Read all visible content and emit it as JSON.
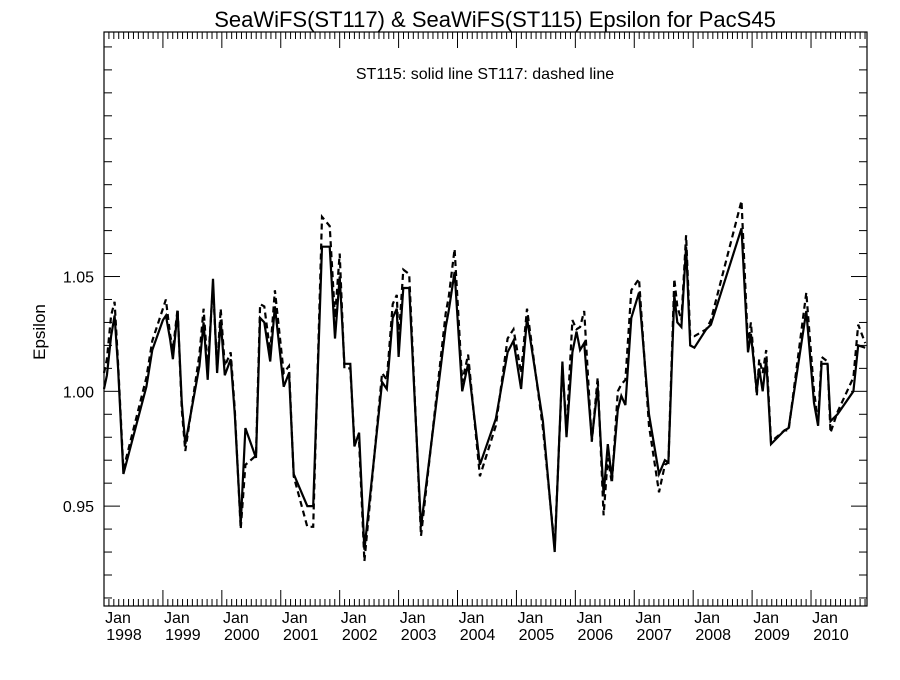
{
  "chart_data": {
    "type": "line",
    "title": "SeaWiFS(ST117) & SeaWiFS(ST115)  Epsilon for PacS45",
    "annotation": "ST115: solid line   ST117: dashed line",
    "xlabel": "",
    "ylabel": "Epsilon",
    "xlim": [
      1998.0,
      2010.95
    ],
    "ylim": [
      0.9065,
      1.1565
    ],
    "y_ticks": [
      {
        "value": 0.95,
        "label": "0.95"
      },
      {
        "value": 1.0,
        "label": "1.00"
      },
      {
        "value": 1.05,
        "label": "1.05"
      }
    ],
    "x_ticks": [
      {
        "value": 1998,
        "month": "Jan",
        "year": "1998"
      },
      {
        "value": 1999,
        "month": "Jan",
        "year": "1999"
      },
      {
        "value": 2000,
        "month": "Jan",
        "year": "2000"
      },
      {
        "value": 2001,
        "month": "Jan",
        "year": "2001"
      },
      {
        "value": 2002,
        "month": "Jan",
        "year": "2002"
      },
      {
        "value": 2003,
        "month": "Jan",
        "year": "2003"
      },
      {
        "value": 2004,
        "month": "Jan",
        "year": "2004"
      },
      {
        "value": 2005,
        "month": "Jan",
        "year": "2005"
      },
      {
        "value": 2006,
        "month": "Jan",
        "year": "2006"
      },
      {
        "value": 2007,
        "month": "Jan",
        "year": "2007"
      },
      {
        "value": 2008,
        "month": "Jan",
        "year": "2008"
      },
      {
        "value": 2009,
        "month": "Jan",
        "year": "2009"
      },
      {
        "value": 2010,
        "month": "Jan",
        "year": "2010"
      }
    ],
    "grid": false,
    "series": [
      {
        "name": "ST115",
        "style": "solid",
        "color": "#000000",
        "points": [
          [
            1998.0,
            1.001
          ],
          [
            1998.05,
            1.007
          ],
          [
            1998.12,
            1.024
          ],
          [
            1998.18,
            1.033
          ],
          [
            1998.24,
            1.01
          ],
          [
            1998.33,
            0.964
          ],
          [
            1998.72,
            1.002
          ],
          [
            1998.82,
            1.018
          ],
          [
            1999.0,
            1.031
          ],
          [
            1999.05,
            1.033
          ],
          [
            1999.12,
            1.023
          ],
          [
            1999.17,
            1.014
          ],
          [
            1999.25,
            1.035
          ],
          [
            1999.32,
            0.995
          ],
          [
            1999.38,
            0.977
          ],
          [
            1999.62,
            1.011
          ],
          [
            1999.69,
            1.03
          ],
          [
            1999.76,
            1.005
          ],
          [
            1999.85,
            1.049
          ],
          [
            1999.92,
            1.008
          ],
          [
            1999.98,
            1.031
          ],
          [
            2000.05,
            1.007
          ],
          [
            2000.15,
            1.014
          ],
          [
            2000.22,
            0.99
          ],
          [
            2000.32,
            0.942
          ],
          [
            2000.4,
            0.984
          ],
          [
            2000.58,
            0.971
          ],
          [
            2000.65,
            1.032
          ],
          [
            2000.72,
            1.03
          ],
          [
            2000.82,
            1.013
          ],
          [
            2000.9,
            1.037
          ],
          [
            2001.05,
            1.002
          ],
          [
            2001.14,
            1.008
          ],
          [
            2001.22,
            0.964
          ],
          [
            2001.45,
            0.95
          ],
          [
            2001.55,
            0.95
          ],
          [
            2001.7,
            1.063
          ],
          [
            2001.83,
            1.063
          ],
          [
            2001.92,
            1.023
          ],
          [
            2002.0,
            1.05
          ],
          [
            2002.08,
            1.012
          ],
          [
            2002.18,
            1.012
          ],
          [
            2002.25,
            0.976
          ],
          [
            2002.33,
            0.982
          ],
          [
            2002.42,
            0.931
          ],
          [
            2002.72,
            1.004
          ],
          [
            2002.8,
            1.001
          ],
          [
            2002.9,
            1.032
          ],
          [
            2002.97,
            1.036
          ],
          [
            2003.0,
            1.015
          ],
          [
            2003.08,
            1.045
          ],
          [
            2003.18,
            1.045
          ],
          [
            2003.38,
            0.941
          ],
          [
            2003.8,
            1.028
          ],
          [
            2003.85,
            1.035
          ],
          [
            2003.95,
            1.052
          ],
          [
            2004.08,
            1.0
          ],
          [
            2004.18,
            1.012
          ],
          [
            2004.38,
            0.968
          ],
          [
            2004.65,
            0.988
          ],
          [
            2004.85,
            1.017
          ],
          [
            2004.95,
            1.022
          ],
          [
            2005.08,
            1.001
          ],
          [
            2005.18,
            1.032
          ],
          [
            2005.45,
            0.987
          ],
          [
            2005.65,
            0.93
          ],
          [
            2005.78,
            1.013
          ],
          [
            2005.85,
            0.98
          ],
          [
            2005.95,
            1.017
          ],
          [
            2006.02,
            1.026
          ],
          [
            2006.08,
            1.018
          ],
          [
            2006.15,
            1.021
          ],
          [
            2006.28,
            0.979
          ],
          [
            2006.38,
            1.002
          ],
          [
            2006.48,
            0.955
          ],
          [
            2006.55,
            0.977
          ],
          [
            2006.62,
            0.962
          ],
          [
            2006.72,
            0.992
          ],
          [
            2006.78,
            0.998
          ],
          [
            2006.85,
            0.994
          ],
          [
            2006.95,
            1.032
          ],
          [
            2007.08,
            1.043
          ],
          [
            2007.25,
            0.99
          ],
          [
            2007.42,
            0.964
          ],
          [
            2007.52,
            0.97
          ],
          [
            2007.58,
            0.969
          ],
          [
            2007.68,
            1.042
          ],
          [
            2007.73,
            1.03
          ],
          [
            2007.8,
            1.028
          ],
          [
            2007.88,
            1.063
          ],
          [
            2007.95,
            1.02
          ],
          [
            2008.02,
            1.019
          ],
          [
            2008.22,
            1.027
          ],
          [
            2008.3,
            1.029
          ],
          [
            2008.82,
            1.071
          ],
          [
            2008.93,
            1.017
          ],
          [
            2008.98,
            1.025
          ],
          [
            2009.08,
            1.0
          ],
          [
            2009.12,
            1.01
          ],
          [
            2009.18,
            1.0
          ],
          [
            2009.24,
            1.014
          ],
          [
            2009.32,
            0.977
          ],
          [
            2009.55,
            0.983
          ],
          [
            2009.62,
            0.984
          ],
          [
            2009.92,
            1.035
          ],
          [
            2010.05,
            0.995
          ],
          [
            2010.12,
            0.985
          ],
          [
            2010.18,
            1.012
          ],
          [
            2010.28,
            1.012
          ],
          [
            2010.33,
            0.987
          ],
          [
            2010.45,
            0.99
          ],
          [
            2010.72,
            1.0
          ],
          [
            2010.8,
            1.02
          ],
          [
            2010.92,
            1.019
          ]
        ]
      },
      {
        "name": "ST117",
        "style": "dashed",
        "color": "#000000",
        "points": [
          [
            1998.0,
            1.008
          ],
          [
            1998.05,
            1.014
          ],
          [
            1998.12,
            1.033
          ],
          [
            1998.18,
            1.039
          ],
          [
            1998.24,
            1.012
          ],
          [
            1998.33,
            0.966
          ],
          [
            1998.72,
            1.006
          ],
          [
            1998.82,
            1.022
          ],
          [
            1999.0,
            1.036
          ],
          [
            1999.05,
            1.04
          ],
          [
            1999.12,
            1.025
          ],
          [
            1999.17,
            1.018
          ],
          [
            1999.25,
            1.036
          ],
          [
            1999.32,
            0.992
          ],
          [
            1999.38,
            0.974
          ],
          [
            1999.62,
            1.016
          ],
          [
            1999.69,
            1.036
          ],
          [
            1999.76,
            1.01
          ],
          [
            1999.85,
            1.046
          ],
          [
            1999.92,
            1.01
          ],
          [
            1999.98,
            1.036
          ],
          [
            2000.05,
            1.011
          ],
          [
            2000.15,
            1.017
          ],
          [
            2000.22,
            0.992
          ],
          [
            2000.32,
            0.94
          ],
          [
            2000.4,
            0.968
          ],
          [
            2000.58,
            0.972
          ],
          [
            2000.65,
            1.038
          ],
          [
            2000.72,
            1.037
          ],
          [
            2000.82,
            1.017
          ],
          [
            2000.9,
            1.044
          ],
          [
            2001.05,
            1.008
          ],
          [
            2001.14,
            1.011
          ],
          [
            2001.22,
            0.963
          ],
          [
            2001.45,
            0.941
          ],
          [
            2001.55,
            0.941
          ],
          [
            2001.7,
            1.076
          ],
          [
            2001.83,
            1.072
          ],
          [
            2001.92,
            1.032
          ],
          [
            2002.0,
            1.06
          ],
          [
            2002.08,
            1.01
          ],
          [
            2002.18,
            1.01
          ],
          [
            2002.25,
            0.978
          ],
          [
            2002.33,
            0.978
          ],
          [
            2002.42,
            0.926
          ],
          [
            2002.72,
            1.008
          ],
          [
            2002.8,
            1.005
          ],
          [
            2002.9,
            1.038
          ],
          [
            2002.97,
            1.042
          ],
          [
            2003.0,
            1.022
          ],
          [
            2003.08,
            1.053
          ],
          [
            2003.18,
            1.051
          ],
          [
            2003.38,
            0.937
          ],
          [
            2003.8,
            1.034
          ],
          [
            2003.85,
            1.041
          ],
          [
            2003.95,
            1.062
          ],
          [
            2004.08,
            1.004
          ],
          [
            2004.18,
            1.016
          ],
          [
            2004.38,
            0.963
          ],
          [
            2004.65,
            0.985
          ],
          [
            2004.85,
            1.023
          ],
          [
            2004.95,
            1.027
          ],
          [
            2005.08,
            1.008
          ],
          [
            2005.18,
            1.036
          ],
          [
            2005.45,
            0.984
          ],
          [
            2005.65,
            0.932
          ],
          [
            2005.78,
            1.011
          ],
          [
            2005.85,
            0.983
          ],
          [
            2005.95,
            1.031
          ],
          [
            2006.02,
            1.027
          ],
          [
            2006.08,
            1.028
          ],
          [
            2006.15,
            1.035
          ],
          [
            2006.28,
            0.978
          ],
          [
            2006.38,
            1.006
          ],
          [
            2006.48,
            0.946
          ],
          [
            2006.55,
            0.971
          ],
          [
            2006.62,
            0.96
          ],
          [
            2006.72,
            1.0
          ],
          [
            2006.78,
            1.003
          ],
          [
            2006.85,
            1.005
          ],
          [
            2006.95,
            1.044
          ],
          [
            2007.08,
            1.049
          ],
          [
            2007.25,
            0.985
          ],
          [
            2007.42,
            0.956
          ],
          [
            2007.52,
            0.968
          ],
          [
            2007.58,
            0.969
          ],
          [
            2007.68,
            1.049
          ],
          [
            2007.73,
            1.037
          ],
          [
            2007.8,
            1.031
          ],
          [
            2007.88,
            1.068
          ],
          [
            2007.95,
            1.024
          ],
          [
            2008.02,
            1.024
          ],
          [
            2008.22,
            1.027
          ],
          [
            2008.3,
            1.031
          ],
          [
            2008.82,
            1.083
          ],
          [
            2008.93,
            1.02
          ],
          [
            2008.98,
            1.03
          ],
          [
            2009.08,
            0.998
          ],
          [
            2009.12,
            1.014
          ],
          [
            2009.18,
            1.008
          ],
          [
            2009.24,
            1.018
          ],
          [
            2009.32,
            0.978
          ],
          [
            2009.55,
            0.983
          ],
          [
            2009.62,
            0.983
          ],
          [
            2009.92,
            1.043
          ],
          [
            2010.05,
            1.0
          ],
          [
            2010.12,
            0.987
          ],
          [
            2010.18,
            1.015
          ],
          [
            2010.28,
            1.013
          ],
          [
            2010.33,
            0.982
          ],
          [
            2010.45,
            0.991
          ],
          [
            2010.72,
            1.006
          ],
          [
            2010.8,
            1.029
          ],
          [
            2010.92,
            1.021
          ]
        ]
      }
    ]
  }
}
